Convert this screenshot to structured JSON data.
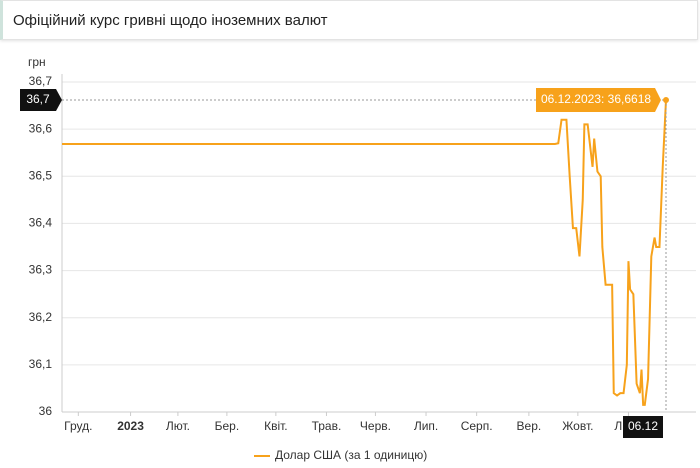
{
  "header": {
    "title": "Офіційний курс гривні щодо іноземних валют"
  },
  "chart_data": {
    "type": "line",
    "y_label": "грн",
    "xlim": [
      0,
      370
    ],
    "ylim": [
      36,
      36.7
    ],
    "yticks": [
      36,
      {
        "value": 36.1,
        "label": "36,1"
      },
      {
        "value": 36.2,
        "label": "36,2"
      },
      {
        "value": 36.3,
        "label": "36,3"
      },
      {
        "value": 36.4,
        "label": "36,4"
      },
      {
        "value": 36.5,
        "label": "36,5"
      },
      {
        "value": 36.6,
        "label": "36,6"
      },
      {
        "value": 36.7,
        "label": "36,7"
      }
    ],
    "xticks": [
      {
        "value": 10,
        "label": "Груд."
      },
      {
        "value": 42,
        "label": "2023"
      },
      {
        "value": 71,
        "label": "Лют."
      },
      {
        "value": 101,
        "label": "Бер."
      },
      {
        "value": 131,
        "label": "Квіт."
      },
      {
        "value": 162,
        "label": "Трав."
      },
      {
        "value": 192,
        "label": "Черв."
      },
      {
        "value": 223,
        "label": "Лип."
      },
      {
        "value": 254,
        "label": "Серп."
      },
      {
        "value": 286,
        "label": "Вер."
      },
      {
        "value": 316,
        "label": "Жовт."
      },
      {
        "value": 347,
        "label": "Лист."
      }
    ],
    "grid": true,
    "series": [
      {
        "name": "Долар США (за 1 одиницю)",
        "color": "#f7a21b",
        "x": [
          0,
          302,
          304,
          306,
          309,
          311,
          313,
          315,
          317,
          319,
          320,
          322,
          324,
          325,
          326,
          328,
          330,
          331,
          333,
          335,
          337,
          338,
          340,
          342,
          344,
          346,
          347,
          348,
          350,
          352,
          354,
          355,
          356,
          357,
          359,
          361,
          363,
          364,
          366,
          368,
          370
        ],
        "values": [
          36.5686,
          36.5686,
          36.57,
          36.62,
          36.62,
          36.5,
          36.39,
          36.39,
          36.33,
          36.45,
          36.61,
          36.61,
          36.55,
          36.52,
          36.58,
          36.51,
          36.5,
          36.35,
          36.27,
          36.27,
          36.27,
          36.04,
          36.035,
          36.04,
          36.04,
          36.1,
          36.32,
          36.26,
          36.25,
          36.06,
          36.04,
          36.09,
          36.015,
          36.015,
          36.07,
          36.33,
          36.37,
          36.35,
          36.35,
          36.52,
          36.6618
        ]
      }
    ],
    "tooltip": "06.12.2023: 36,6618",
    "crosshair_y_label": "36,7",
    "crosshair_x_label": "06.12"
  }
}
